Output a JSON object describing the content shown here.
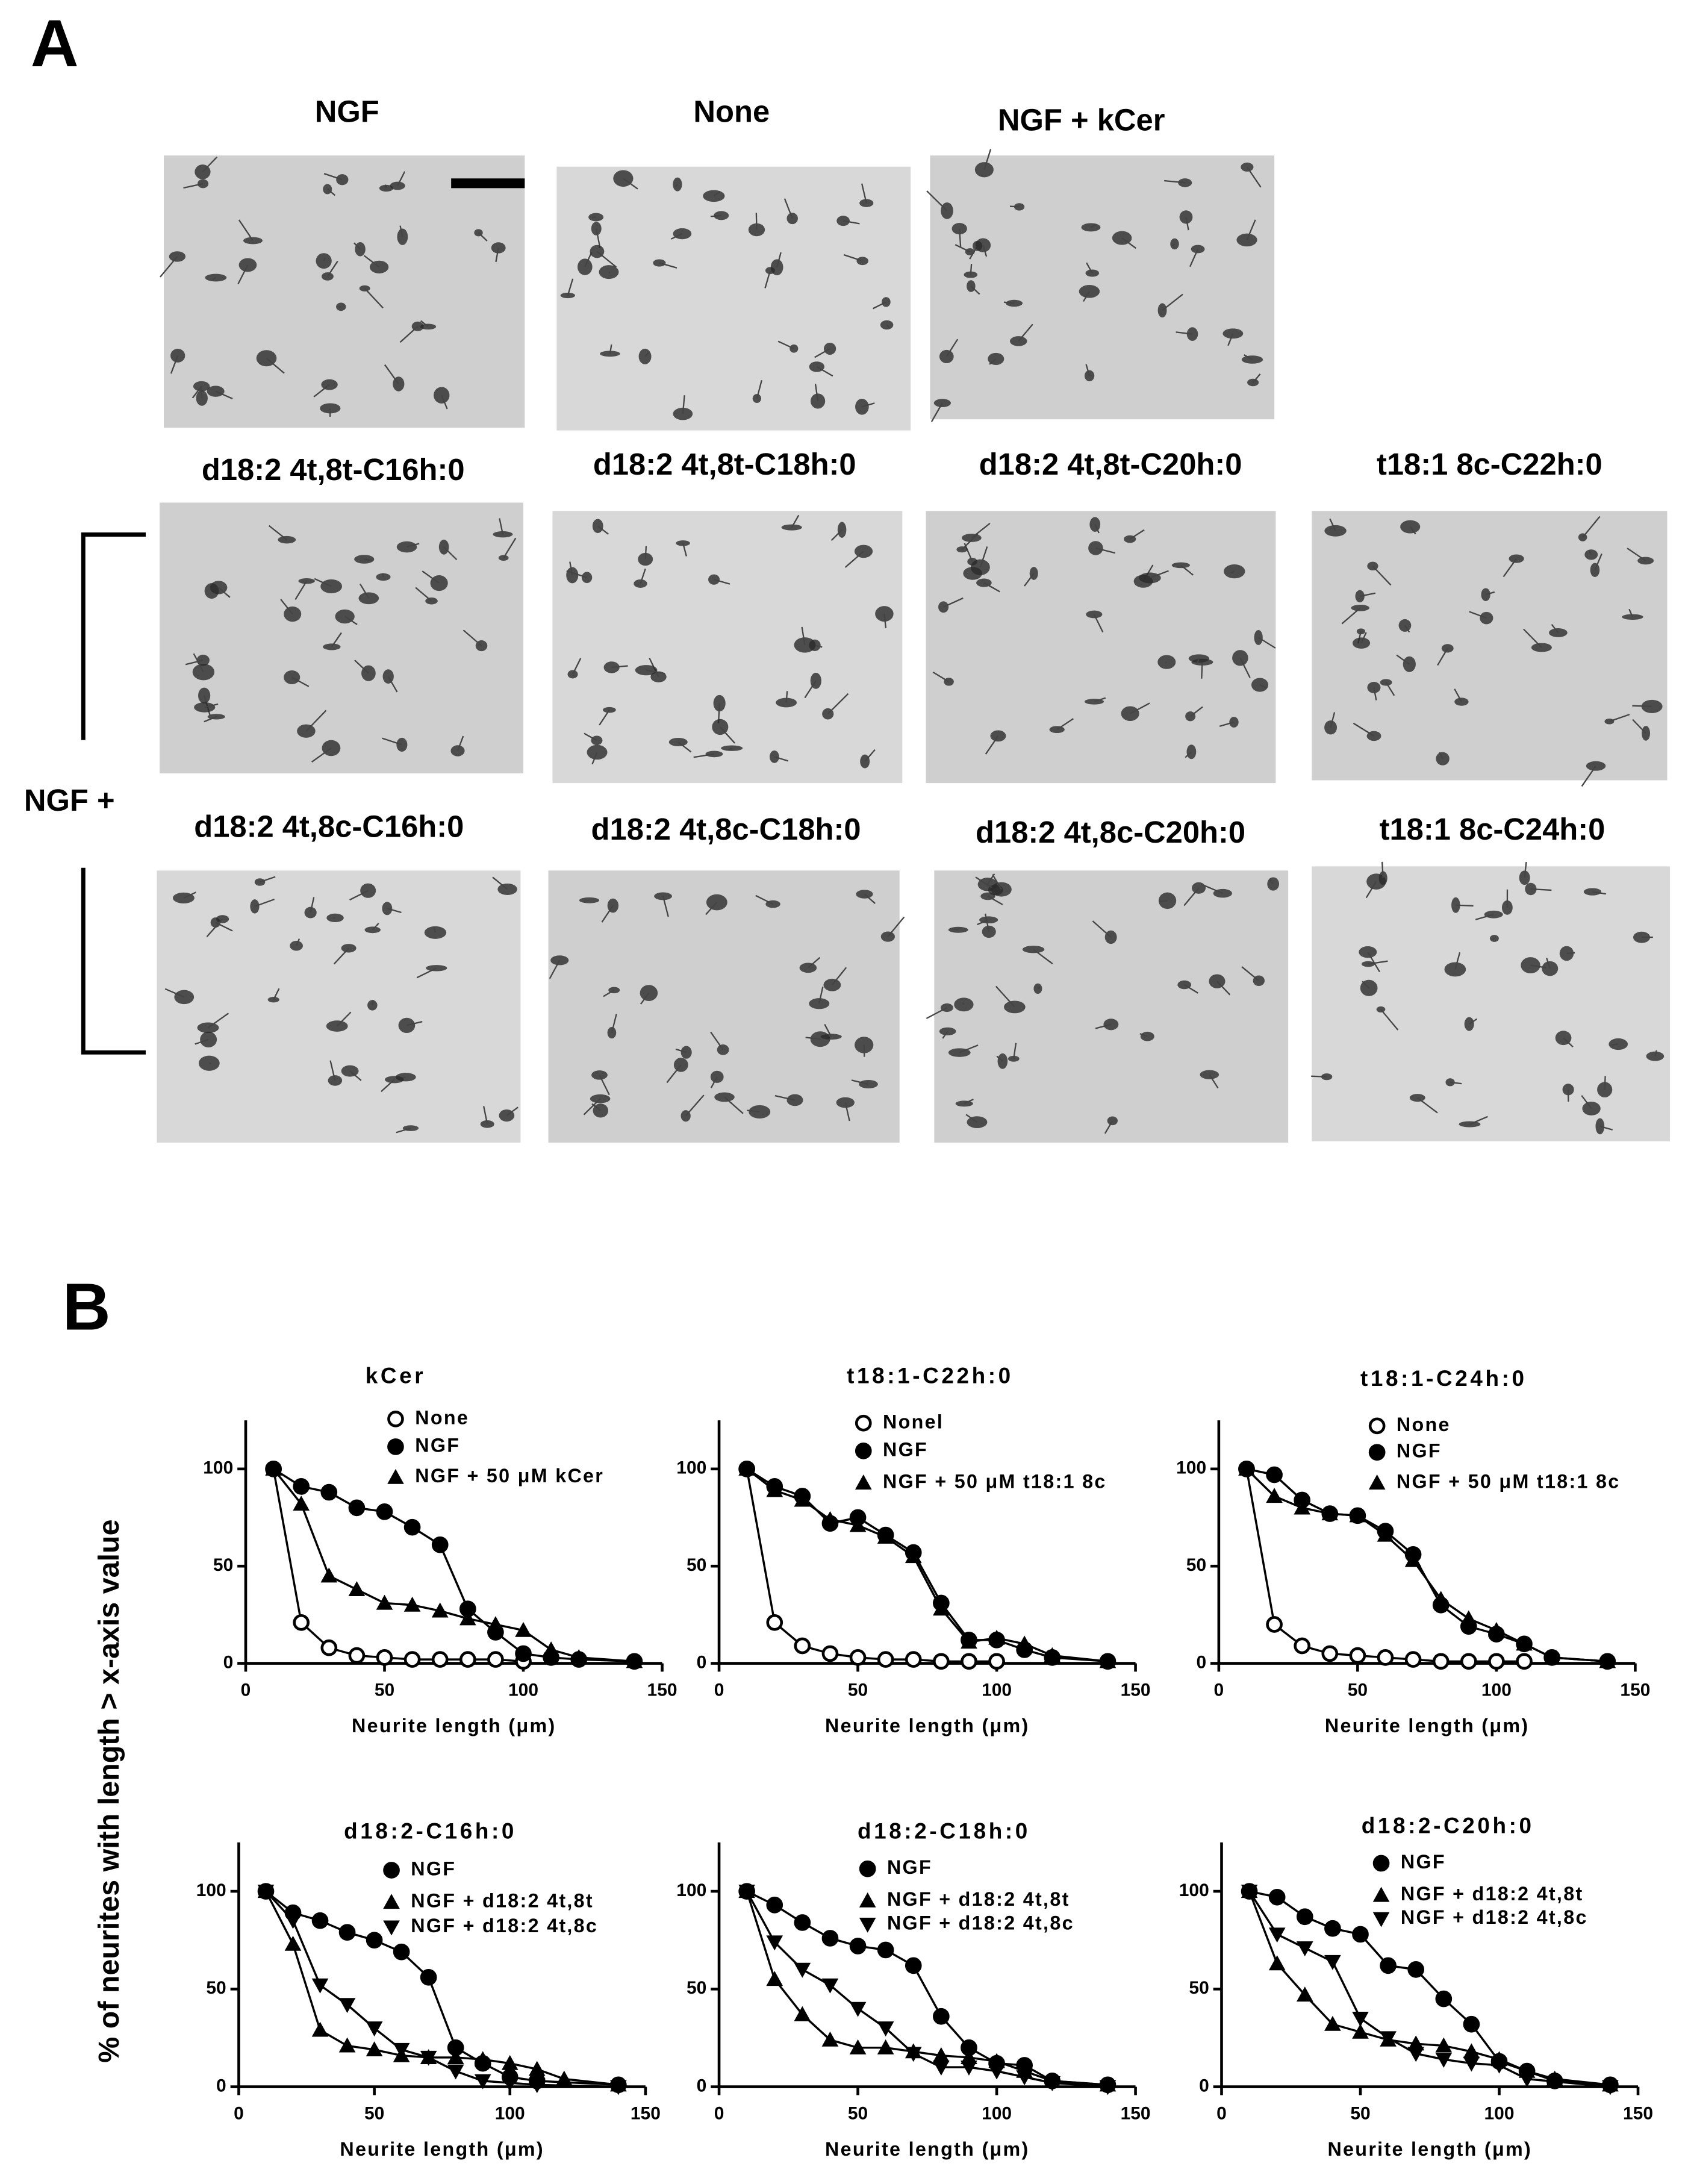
{
  "panel_labels": {
    "a": "A",
    "b": "B"
  },
  "panel_a": {
    "row1": [
      "NGF",
      "None",
      "NGF + kCer"
    ],
    "row2": [
      "d18:2 4t,8t-C16h:0",
      "d18:2 4t,8t-C18h:0",
      "d18:2 4t,8t-C20h:0",
      "t18:1 8c-C22h:0"
    ],
    "row3": [
      "d18:2 4t,8c-C16h:0",
      "d18:2 4t,8c-C18h:0",
      "d18:2 4t,8c-C20h:0",
      "t18:1 8c-C24h:0"
    ],
    "bracket_label": "NGF +"
  },
  "shared_ylabel": "% of neurites with length > x-axis value",
  "chart_data": [
    {
      "type": "line",
      "title": "kCer",
      "xlabel": "Neurite length (μm)",
      "xlim": [
        0,
        150
      ],
      "xticks": [
        0,
        50,
        100,
        150
      ],
      "ylim": [
        0,
        125
      ],
      "yticks": [
        0,
        50,
        100
      ],
      "series": [
        {
          "name": "None",
          "marker": "open-circle",
          "color": "#000000",
          "x": [
            10,
            20,
            30,
            40,
            50,
            60,
            70,
            80,
            90,
            100
          ],
          "values": [
            100,
            21,
            8,
            4,
            3,
            2,
            2,
            2,
            2,
            1
          ]
        },
        {
          "name": "NGF",
          "marker": "circle",
          "color": "#000000",
          "x": [
            10,
            20,
            30,
            40,
            50,
            60,
            70,
            80,
            90,
            100,
            110,
            120,
            140
          ],
          "values": [
            100,
            91,
            88,
            80,
            78,
            70,
            61,
            28,
            16,
            5,
            3,
            2,
            1
          ]
        },
        {
          "name": "NGF + 50 μM kCer",
          "marker": "triangle",
          "color": "#000000",
          "x": [
            10,
            20,
            30,
            40,
            50,
            60,
            70,
            80,
            90,
            100,
            110,
            120,
            140
          ],
          "values": [
            100,
            82,
            45,
            38,
            31,
            30,
            27,
            23,
            20,
            17,
            7,
            3,
            1
          ]
        }
      ]
    },
    {
      "type": "line",
      "title": "t18:1-C22h:0",
      "xlabel": "Neurite length (μm)",
      "xlim": [
        0,
        150
      ],
      "xticks": [
        0,
        50,
        100,
        150
      ],
      "ylim": [
        0,
        125
      ],
      "yticks": [
        0,
        50,
        100
      ],
      "series": [
        {
          "name": "Nonel",
          "marker": "open-circle",
          "color": "#000000",
          "x": [
            10,
            20,
            30,
            40,
            50,
            60,
            70,
            80,
            90,
            100
          ],
          "values": [
            100,
            21,
            9,
            5,
            3,
            2,
            2,
            1,
            1,
            1
          ]
        },
        {
          "name": "NGF",
          "marker": "circle",
          "color": "#000000",
          "x": [
            10,
            20,
            30,
            40,
            50,
            60,
            70,
            80,
            90,
            100,
            110,
            120,
            140
          ],
          "values": [
            100,
            91,
            86,
            72,
            75,
            66,
            57,
            31,
            12,
            12,
            7,
            3,
            1
          ]
        },
        {
          "name": "NGF + 50 μM t18:1 8c",
          "marker": "triangle",
          "color": "#000000",
          "x": [
            10,
            20,
            30,
            40,
            50,
            60,
            70,
            80,
            90,
            100,
            110,
            120,
            140
          ],
          "values": [
            100,
            89,
            84,
            74,
            71,
            65,
            55,
            28,
            11,
            13,
            10,
            4,
            1
          ]
        }
      ]
    },
    {
      "type": "line",
      "title": "t18:1-C24h:0",
      "xlabel": "Neurite length (μm)",
      "xlim": [
        0,
        150
      ],
      "xticks": [
        0,
        50,
        100,
        150
      ],
      "ylim": [
        0,
        125
      ],
      "yticks": [
        0,
        50,
        100
      ],
      "series": [
        {
          "name": "None",
          "marker": "open-circle",
          "color": "#000000",
          "x": [
            10,
            20,
            30,
            40,
            50,
            60,
            70,
            80,
            90,
            100,
            110
          ],
          "values": [
            100,
            20,
            9,
            5,
            4,
            3,
            2,
            1,
            1,
            1,
            1
          ]
        },
        {
          "name": "NGF",
          "marker": "circle",
          "color": "#000000",
          "x": [
            10,
            20,
            30,
            40,
            50,
            60,
            70,
            80,
            90,
            100,
            110,
            120,
            140
          ],
          "values": [
            100,
            97,
            84,
            77,
            76,
            68,
            56,
            30,
            19,
            15,
            10,
            3,
            1
          ]
        },
        {
          "name": "NGF + 50 μM t18:1 8c",
          "marker": "triangle",
          "color": "#000000",
          "x": [
            10,
            20,
            30,
            40,
            50,
            60,
            70,
            80,
            90,
            100,
            110,
            120,
            140
          ],
          "values": [
            100,
            86,
            80,
            77,
            76,
            66,
            53,
            33,
            23,
            17,
            10,
            3,
            1
          ]
        }
      ]
    },
    {
      "type": "line",
      "title": "d18:2-C16h:0",
      "xlabel": "Neurite length (μm)",
      "xlim": [
        0,
        150
      ],
      "xticks": [
        0,
        50,
        100,
        150
      ],
      "ylim": [
        0,
        125
      ],
      "yticks": [
        0,
        50,
        100
      ],
      "series": [
        {
          "name": "NGF",
          "marker": "circle",
          "color": "#000000",
          "x": [
            10,
            20,
            30,
            40,
            50,
            60,
            70,
            80,
            90,
            100,
            110,
            140
          ],
          "values": [
            100,
            89,
            85,
            79,
            75,
            69,
            56,
            20,
            12,
            5,
            3,
            1
          ]
        },
        {
          "name": "NGF + d18:2 4t,8t",
          "marker": "triangle",
          "color": "#000000",
          "x": [
            10,
            20,
            30,
            40,
            50,
            60,
            70,
            80,
            90,
            100,
            110,
            120,
            140
          ],
          "values": [
            100,
            73,
            29,
            21,
            19,
            16,
            15,
            15,
            14,
            12,
            9,
            4,
            1
          ]
        },
        {
          "name": "NGF + d18:2 4t,8c",
          "marker": "triangle-down",
          "color": "#000000",
          "x": [
            10,
            20,
            30,
            40,
            50,
            60,
            70,
            80,
            90,
            100,
            110,
            140
          ],
          "values": [
            100,
            85,
            52,
            42,
            30,
            19,
            15,
            8,
            3,
            2,
            1,
            0
          ]
        }
      ]
    },
    {
      "type": "line",
      "title": "d18:2-C18h:0",
      "xlabel": "Neurite length (μm)",
      "xlim": [
        0,
        150
      ],
      "xticks": [
        0,
        50,
        100,
        150
      ],
      "ylim": [
        0,
        125
      ],
      "yticks": [
        0,
        50,
        100
      ],
      "series": [
        {
          "name": "NGF",
          "marker": "circle",
          "color": "#000000",
          "x": [
            10,
            20,
            30,
            40,
            50,
            60,
            70,
            80,
            90,
            100,
            110,
            120,
            140
          ],
          "values": [
            100,
            93,
            84,
            76,
            72,
            70,
            62,
            36,
            20,
            12,
            11,
            3,
            1
          ]
        },
        {
          "name": "NGF + d18:2 4t,8t",
          "marker": "triangle",
          "color": "#000000",
          "x": [
            10,
            20,
            30,
            40,
            50,
            60,
            70,
            80,
            90,
            100,
            110,
            120,
            140
          ],
          "values": [
            100,
            55,
            37,
            24,
            20,
            20,
            18,
            16,
            15,
            13,
            8,
            3,
            1
          ]
        },
        {
          "name": "NGF + d18:2 4t,8c",
          "marker": "triangle-down",
          "color": "#000000",
          "x": [
            10,
            20,
            30,
            40,
            50,
            60,
            70,
            80,
            90,
            100,
            110,
            120,
            140
          ],
          "values": [
            100,
            74,
            60,
            52,
            40,
            30,
            17,
            10,
            10,
            8,
            5,
            2,
            0
          ]
        }
      ]
    },
    {
      "type": "line",
      "title": "d18:2-C20h:0",
      "xlabel": "Neurite length (μm)",
      "xlim": [
        0,
        150
      ],
      "xticks": [
        0,
        50,
        100,
        150
      ],
      "ylim": [
        0,
        125
      ],
      "yticks": [
        0,
        50,
        100
      ],
      "series": [
        {
          "name": "NGF",
          "marker": "circle",
          "color": "#000000",
          "x": [
            10,
            20,
            30,
            40,
            50,
            60,
            70,
            80,
            90,
            100,
            110,
            120,
            140
          ],
          "values": [
            100,
            97,
            87,
            81,
            78,
            62,
            60,
            45,
            32,
            13,
            8,
            3,
            1
          ]
        },
        {
          "name": "NGF + d18:2 4t,8t",
          "marker": "triangle",
          "color": "#000000",
          "x": [
            10,
            20,
            30,
            40,
            50,
            60,
            70,
            80,
            90,
            100,
            110,
            120,
            140
          ],
          "values": [
            100,
            63,
            47,
            32,
            28,
            24,
            22,
            21,
            18,
            14,
            8,
            4,
            1
          ]
        },
        {
          "name": "NGF + d18:2 4t,8c",
          "marker": "triangle-down",
          "color": "#000000",
          "x": [
            10,
            20,
            30,
            40,
            50,
            60,
            70,
            80,
            90,
            100,
            110,
            140
          ],
          "values": [
            100,
            78,
            71,
            64,
            35,
            25,
            17,
            14,
            12,
            11,
            4,
            0
          ]
        }
      ]
    }
  ]
}
